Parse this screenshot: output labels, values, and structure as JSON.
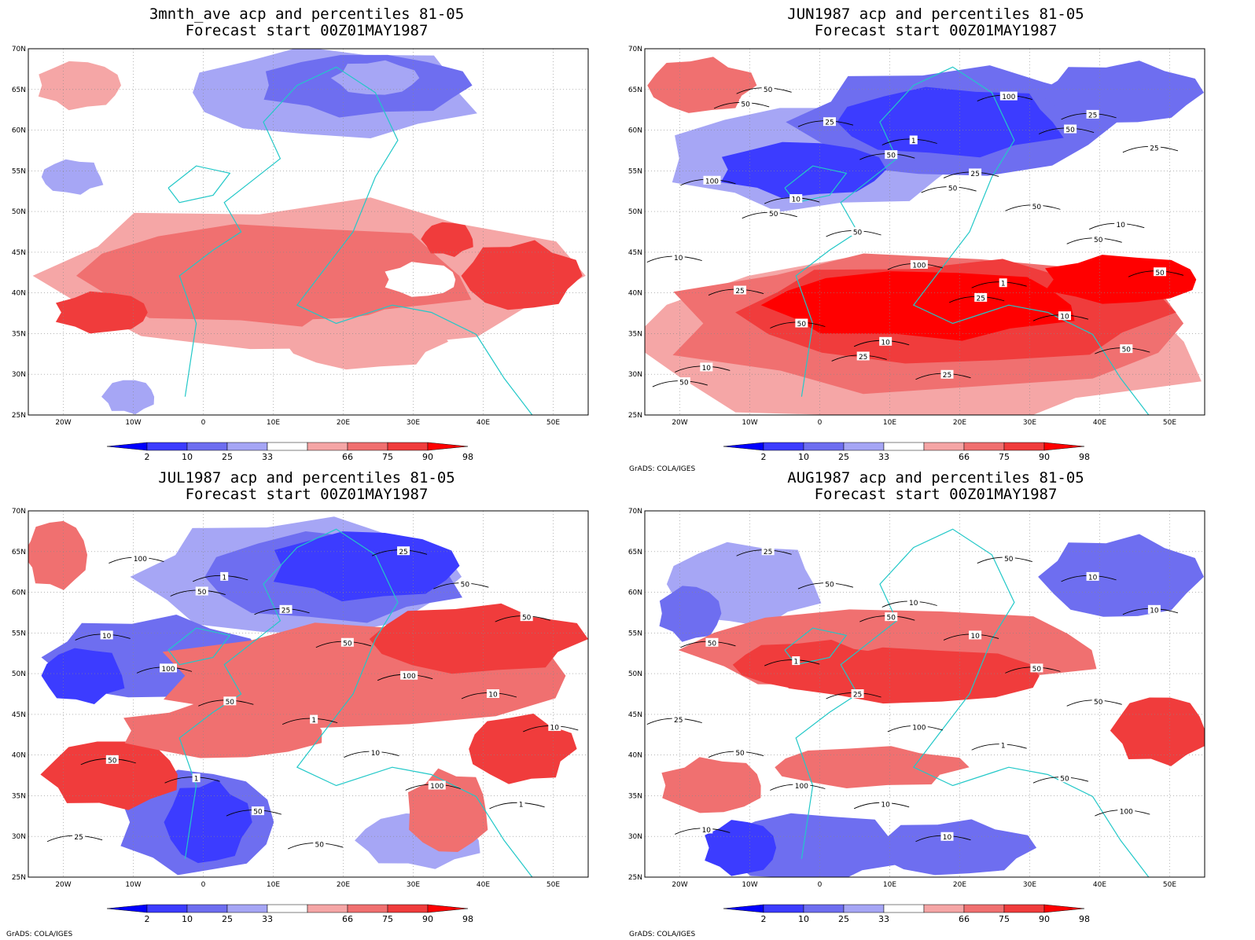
{
  "credit": "GrADS: COLA/IGES",
  "lat_labels": [
    "70N",
    "65N",
    "60N",
    "55N",
    "50N",
    "45N",
    "40N",
    "35N",
    "30N",
    "25N"
  ],
  "lon_labels": [
    "20W",
    "10W",
    "0",
    "10E",
    "20E",
    "30E",
    "40E",
    "50E"
  ],
  "colorbar": {
    "labels": [
      "2",
      "10",
      "25",
      "33",
      "66",
      "75",
      "90",
      "98"
    ],
    "colors": [
      "#0000ff",
      "#3c3cff",
      "#6e6ef0",
      "#a6a6f5",
      "#ffffff",
      "#f5a6a6",
      "#f07070",
      "#f03c3c",
      "#ff0000"
    ]
  },
  "panels": [
    {
      "title1": "3mnth_ave acp and percentiles 81-05",
      "title2": "Forecast start 00Z01MAY1987",
      "contours": []
    },
    {
      "title1": "JUN1987 acp and percentiles 81-05",
      "title2": "Forecast start 00Z01MAY1987",
      "contours": [
        "50",
        "50",
        "50",
        "25",
        "50",
        "50",
        "25",
        "50",
        "50",
        "50",
        "50",
        "100",
        "100",
        "100",
        "50",
        "25",
        "50",
        "25",
        "25",
        "25",
        "50",
        "10",
        "50",
        "25",
        "10",
        "10",
        "25",
        "10",
        "1",
        "10",
        "1",
        "10"
      ]
    },
    {
      "title1": "JUL1987 acp and percentiles 81-05",
      "title2": "Forecast start 00Z01MAY1987",
      "contours": [
        "50",
        "100",
        "50",
        "50",
        "50",
        "50",
        "100",
        "100",
        "50",
        "10",
        "50",
        "50",
        "100",
        "10",
        "25",
        "25",
        "10",
        "1",
        "25",
        "10",
        "1",
        "1",
        "1"
      ]
    },
    {
      "title1": "AUG1987 acp and percentiles 81-05",
      "title2": "Forecast start 00Z01MAY1987",
      "contours": [
        "50",
        "50",
        "100",
        "50",
        "50",
        "100",
        "100",
        "50",
        "50",
        "50",
        "10",
        "10",
        "25",
        "50",
        "25",
        "10",
        "25",
        "10",
        "10",
        "1",
        "1",
        "10",
        "10"
      ]
    }
  ]
}
